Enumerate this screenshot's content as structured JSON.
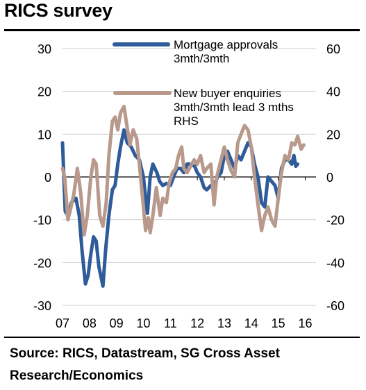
{
  "title": "RICS survey",
  "source": "Source: RICS, Datastream, SG Cross Asset Research/Economics",
  "colors": {
    "mortgage": "#2e5b99",
    "enquiries": "#b8998c",
    "grid": "#cccccc",
    "axis": "#000000"
  },
  "chart_data": {
    "type": "line",
    "x_tick_labels": [
      "07",
      "08",
      "09",
      "10",
      "11",
      "12",
      "13",
      "14",
      "15",
      "16"
    ],
    "x_range": [
      2007.0,
      2016.4
    ],
    "y_left": {
      "range": [
        -30,
        30
      ],
      "ticks": [
        30,
        20,
        10,
        0,
        -10,
        -20,
        -30
      ]
    },
    "y_right": {
      "range": [
        -60,
        60
      ],
      "ticks": [
        60,
        40,
        20,
        0,
        -20,
        -40,
        -60
      ],
      "label": "RHS"
    },
    "grid": true,
    "series": [
      {
        "name": "Mortgage approvals 3mth/3mth",
        "axis": "left",
        "points": [
          [
            2007.0,
            8
          ],
          [
            2007.1,
            -8
          ],
          [
            2007.2,
            -9
          ],
          [
            2007.33,
            -6
          ],
          [
            2007.5,
            -5
          ],
          [
            2007.62,
            -9
          ],
          [
            2007.72,
            -17
          ],
          [
            2007.85,
            -25
          ],
          [
            2007.95,
            -23
          ],
          [
            2008.05,
            -18
          ],
          [
            2008.15,
            -14
          ],
          [
            2008.25,
            -15
          ],
          [
            2008.35,
            -21
          ],
          [
            2008.5,
            -25.5
          ],
          [
            2008.6,
            -17
          ],
          [
            2008.72,
            -9
          ],
          [
            2008.85,
            -3
          ],
          [
            2008.95,
            -2
          ],
          [
            2009.05,
            3
          ],
          [
            2009.15,
            7
          ],
          [
            2009.28,
            11
          ],
          [
            2009.4,
            8
          ],
          [
            2009.55,
            7
          ],
          [
            2009.7,
            5
          ],
          [
            2009.85,
            4
          ],
          [
            2010.0,
            0
          ],
          [
            2010.08,
            -5
          ],
          [
            2010.15,
            -8.5
          ],
          [
            2010.25,
            0
          ],
          [
            2010.35,
            3
          ],
          [
            2010.5,
            1
          ],
          [
            2010.6,
            -1
          ],
          [
            2010.72,
            -2
          ],
          [
            2010.85,
            -1.5
          ],
          [
            2011.0,
            -2
          ],
          [
            2011.12,
            0
          ],
          [
            2011.25,
            2
          ],
          [
            2011.38,
            2
          ],
          [
            2011.5,
            1
          ],
          [
            2011.62,
            3
          ],
          [
            2011.75,
            3
          ],
          [
            2011.9,
            2.5
          ],
          [
            2012.0,
            1
          ],
          [
            2012.12,
            0
          ],
          [
            2012.25,
            -2.5
          ],
          [
            2012.35,
            -3
          ],
          [
            2012.5,
            -2
          ],
          [
            2012.62,
            -2
          ],
          [
            2012.75,
            0
          ],
          [
            2012.88,
            1
          ],
          [
            2013.0,
            5
          ],
          [
            2013.12,
            6
          ],
          [
            2013.25,
            4
          ],
          [
            2013.38,
            2
          ],
          [
            2013.5,
            5
          ],
          [
            2013.62,
            4
          ],
          [
            2013.75,
            6
          ],
          [
            2013.88,
            8
          ],
          [
            2014.0,
            7
          ],
          [
            2014.12,
            3
          ],
          [
            2014.25,
            0
          ],
          [
            2014.38,
            -6
          ],
          [
            2014.5,
            -7
          ],
          [
            2014.62,
            0
          ],
          [
            2014.75,
            -1
          ],
          [
            2014.88,
            -2
          ],
          [
            2015.0,
            -5
          ],
          [
            2015.12,
            2
          ],
          [
            2015.25,
            4
          ],
          [
            2015.38,
            4
          ],
          [
            2015.5,
            3
          ],
          [
            2015.58,
            5
          ],
          [
            2015.65,
            2.5
          ],
          [
            2015.72,
            3
          ]
        ]
      },
      {
        "name": "New buyer enquiries 3mth/3mth  lead 3 mths RHS",
        "axis": "right",
        "points": [
          [
            2007.0,
            4
          ],
          [
            2007.08,
            0
          ],
          [
            2007.2,
            -20
          ],
          [
            2007.3,
            -15
          ],
          [
            2007.42,
            -8
          ],
          [
            2007.55,
            4
          ],
          [
            2007.68,
            -8
          ],
          [
            2007.8,
            -27
          ],
          [
            2007.92,
            -18
          ],
          [
            2008.05,
            0
          ],
          [
            2008.15,
            8
          ],
          [
            2008.25,
            6
          ],
          [
            2008.38,
            -18
          ],
          [
            2008.5,
            -23
          ],
          [
            2008.62,
            -12
          ],
          [
            2008.72,
            10
          ],
          [
            2008.85,
            26
          ],
          [
            2008.95,
            28
          ],
          [
            2009.05,
            22
          ],
          [
            2009.15,
            30
          ],
          [
            2009.28,
            33
          ],
          [
            2009.4,
            23
          ],
          [
            2009.5,
            15
          ],
          [
            2009.62,
            22
          ],
          [
            2009.75,
            18
          ],
          [
            2009.85,
            6
          ],
          [
            2010.0,
            -14
          ],
          [
            2010.08,
            -25
          ],
          [
            2010.18,
            -19
          ],
          [
            2010.25,
            -26
          ],
          [
            2010.35,
            -18
          ],
          [
            2010.48,
            -5
          ],
          [
            2010.62,
            -18
          ],
          [
            2010.72,
            -10
          ],
          [
            2010.85,
            -12
          ],
          [
            2010.95,
            -3
          ],
          [
            2011.08,
            2
          ],
          [
            2011.2,
            4
          ],
          [
            2011.3,
            10
          ],
          [
            2011.42,
            14
          ],
          [
            2011.5,
            4
          ],
          [
            2011.62,
            2
          ],
          [
            2011.75,
            5
          ],
          [
            2011.88,
            8
          ],
          [
            2012.0,
            6
          ],
          [
            2012.12,
            10
          ],
          [
            2012.25,
            2
          ],
          [
            2012.35,
            4
          ],
          [
            2012.5,
            6
          ],
          [
            2012.62,
            -13
          ],
          [
            2012.72,
            0
          ],
          [
            2012.88,
            8
          ],
          [
            2013.0,
            14
          ],
          [
            2013.12,
            8
          ],
          [
            2013.25,
            3
          ],
          [
            2013.38,
            0
          ],
          [
            2013.5,
            16
          ],
          [
            2013.62,
            20
          ],
          [
            2013.75,
            24
          ],
          [
            2013.88,
            22
          ],
          [
            2014.0,
            14
          ],
          [
            2014.12,
            0
          ],
          [
            2014.25,
            -13
          ],
          [
            2014.38,
            -25
          ],
          [
            2014.5,
            -18
          ],
          [
            2014.62,
            -14
          ],
          [
            2014.75,
            -20
          ],
          [
            2014.88,
            -23
          ],
          [
            2015.0,
            -10
          ],
          [
            2015.12,
            2
          ],
          [
            2015.25,
            10
          ],
          [
            2015.38,
            8
          ],
          [
            2015.5,
            16
          ],
          [
            2015.62,
            15
          ],
          [
            2015.72,
            19
          ],
          [
            2015.85,
            13
          ],
          [
            2015.95,
            15
          ]
        ]
      }
    ]
  }
}
